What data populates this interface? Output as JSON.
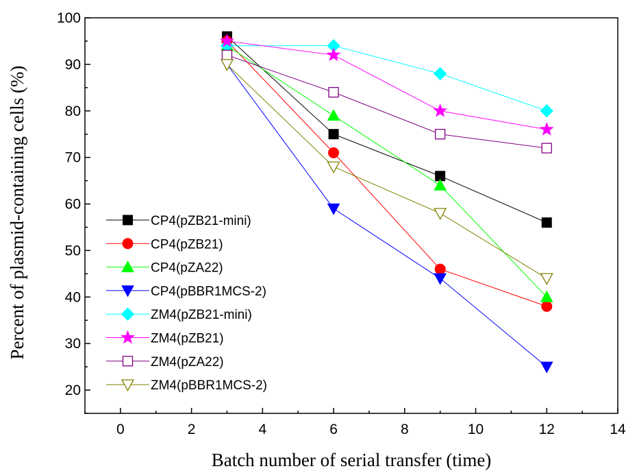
{
  "chart_data": {
    "type": "line",
    "xlabel": "Batch number of serial transfer (time)",
    "ylabel": "Percent of plasmid-containing cells (%)",
    "xlim": [
      -1,
      14
    ],
    "ylim": [
      15,
      100
    ],
    "xticks": [
      0,
      2,
      4,
      6,
      8,
      10,
      12,
      14
    ],
    "yticks": [
      20,
      30,
      40,
      50,
      60,
      70,
      80,
      90,
      100
    ],
    "grid": false,
    "legend_position": "bottom-left",
    "x": [
      3,
      6,
      9,
      12
    ],
    "series": [
      {
        "name": "CP4(pZB21-mini)",
        "values": [
          96,
          75,
          66,
          56
        ],
        "color": "#000000",
        "marker": "square-filled"
      },
      {
        "name": "CP4(pZB21)",
        "values": [
          95,
          71,
          46,
          38
        ],
        "color": "#ff0000",
        "marker": "circle-filled"
      },
      {
        "name": "CP4(pZA22)",
        "values": [
          94,
          79,
          64,
          40
        ],
        "color": "#00ff00",
        "marker": "triangle-up-filled"
      },
      {
        "name": "CP4(pBBR1MCS-2)",
        "values": [
          90,
          59,
          44,
          25
        ],
        "color": "#0000ff",
        "marker": "triangle-down-filled"
      },
      {
        "name": "ZM4(pZB21-mini)",
        "values": [
          94,
          94,
          88,
          80
        ],
        "color": "#00ffff",
        "marker": "diamond-filled"
      },
      {
        "name": "ZM4(pZB21)",
        "values": [
          95,
          92,
          80,
          76
        ],
        "color": "#ff00ff",
        "marker": "star-filled"
      },
      {
        "name": "ZM4(pZA22)",
        "values": [
          92,
          84,
          75,
          72
        ],
        "color": "#800080",
        "marker": "square-open"
      },
      {
        "name": "ZM4(pBBR1MCS-2)",
        "values": [
          90,
          68,
          58,
          44
        ],
        "color": "#808000",
        "marker": "triangle-down-open"
      }
    ]
  }
}
